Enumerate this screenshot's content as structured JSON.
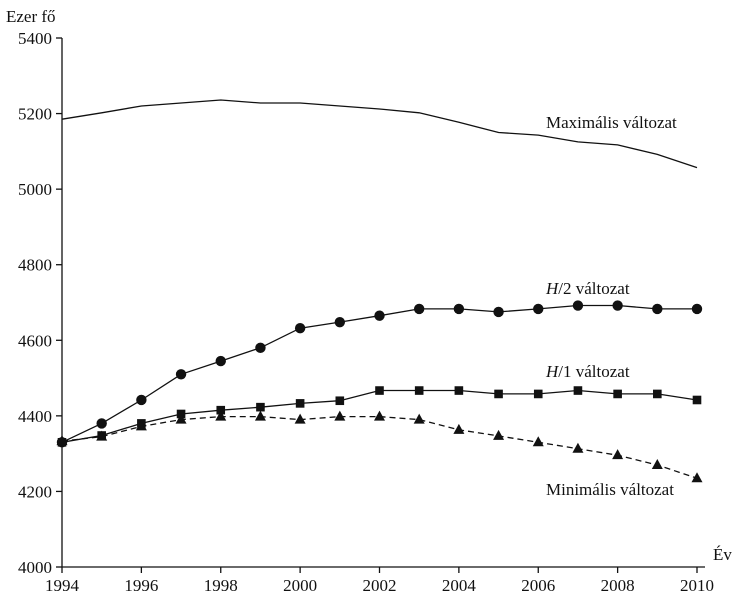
{
  "chart_data": {
    "type": "line",
    "xlabel": "Év",
    "ylabel": "Ezer fő",
    "xlim": [
      1994,
      2010
    ],
    "ylim": [
      4000,
      5400
    ],
    "x_ticks": [
      1994,
      1996,
      1998,
      2000,
      2002,
      2004,
      2006,
      2008,
      2010
    ],
    "y_ticks": [
      4000,
      4200,
      4400,
      4600,
      4800,
      5000,
      5200,
      5400
    ],
    "grid": false,
    "x": [
      1994,
      1995,
      1996,
      1997,
      1998,
      1999,
      2000,
      2001,
      2002,
      2003,
      2004,
      2005,
      2006,
      2007,
      2008,
      2009,
      2010
    ],
    "series": [
      {
        "name": "Maximális változat",
        "marker": "none",
        "line_style": "solid",
        "values": [
          5185,
          5202,
          5220,
          5228,
          5236,
          5228,
          5228,
          5220,
          5212,
          5202,
          5177,
          5150,
          5143,
          5125,
          5117,
          5092,
          5057
        ]
      },
      {
        "name_prefix": "H",
        "name_suffix": "/2 változat",
        "marker": "circle",
        "line_style": "solid",
        "values": [
          4330,
          4380,
          4442,
          4510,
          4545,
          4580,
          4632,
          4648,
          4665,
          4683,
          4683,
          4675,
          4683,
          4692,
          4692,
          4683,
          4683
        ]
      },
      {
        "name_prefix": "H",
        "name_suffix": "/1 változat",
        "marker": "square",
        "line_style": "solid",
        "values": [
          4330,
          4348,
          4380,
          4405,
          4415,
          4423,
          4433,
          4440,
          4467,
          4467,
          4467,
          4458,
          4458,
          4467,
          4458,
          4458,
          4442
        ]
      },
      {
        "name": "Minimális változat",
        "marker": "triangle",
        "line_style": "dashed",
        "values": [
          4333,
          4345,
          4372,
          4390,
          4398,
          4398,
          4390,
          4398,
          4398,
          4390,
          4363,
          4347,
          4330,
          4313,
          4296,
          4270,
          4235
        ]
      }
    ]
  }
}
